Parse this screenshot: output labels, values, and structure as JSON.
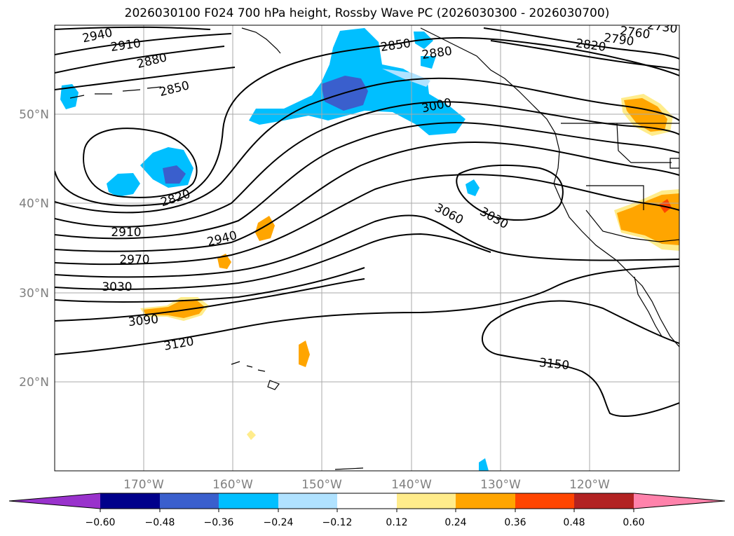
{
  "title": "2026030100 F024 700 hPa height, Rossby Wave PC (2026030300 - 2026030700)",
  "lat_labels": [
    "50°N",
    "40°N",
    "30°N",
    "20°N"
  ],
  "lon_labels": [
    "170°W",
    "160°W",
    "150°W",
    "140°W",
    "130°W",
    "120°W"
  ],
  "colorbar": {
    "ticks": [
      "−0.60",
      "−0.48",
      "−0.36",
      "−0.24",
      "−0.12",
      "0.12",
      "0.24",
      "0.36",
      "0.48",
      "0.60"
    ],
    "colors": [
      "#9932cc",
      "#00008b",
      "#3a5fcd",
      "#00bfff",
      "#b0e2ff",
      "#ffffff",
      "#ffec8b",
      "#ffa500",
      "#ff4500",
      "#b22222",
      "#ff82ab"
    ]
  },
  "contour_labels": [
    "2940",
    "2910",
    "2880",
    "2850",
    "2820",
    "2910",
    "2940",
    "2970",
    "3030",
    "3090",
    "3120",
    "2850",
    "2880",
    "3000",
    "3060",
    "3030",
    "3150",
    "2820",
    "2790",
    "2760",
    "2730"
  ]
}
